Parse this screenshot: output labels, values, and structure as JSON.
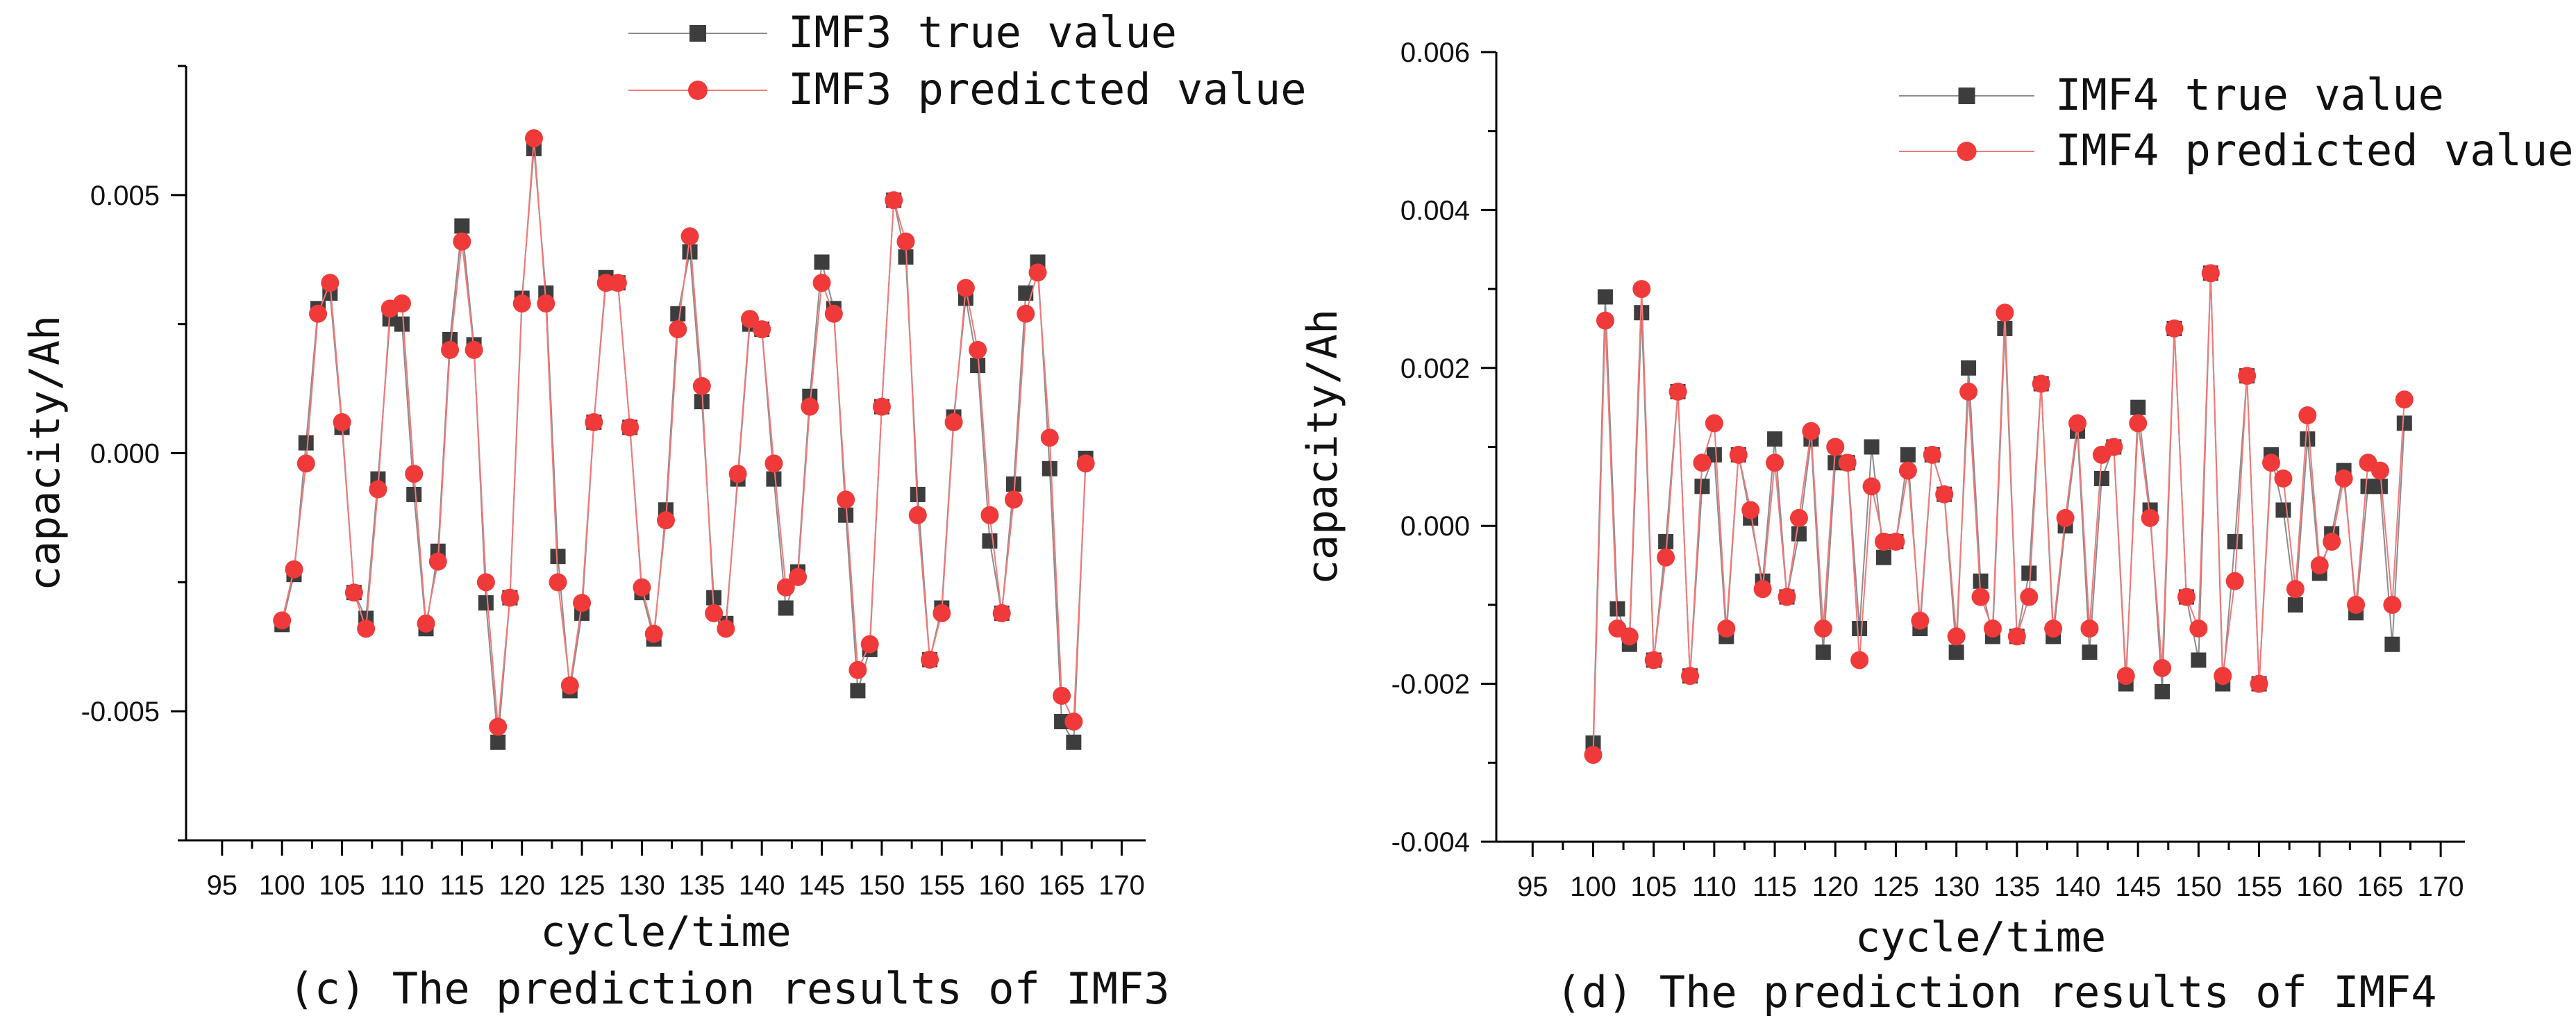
{
  "chart_data": [
    {
      "type": "line",
      "title": "",
      "caption": "(c) The prediction results of IMF3",
      "xlabel": "cycle/time",
      "ylabel": "capacity/Ah",
      "xlim": [
        92,
        172
      ],
      "ylim": [
        -0.0075,
        0.0075
      ],
      "xticks": [
        95,
        100,
        105,
        110,
        115,
        120,
        125,
        130,
        135,
        140,
        145,
        150,
        155,
        160,
        165,
        170
      ],
      "xtick_labels": [
        "95",
        "100",
        "105",
        "110",
        "115",
        "120",
        "125",
        "130",
        "135",
        "140",
        "145",
        "150",
        "155",
        "160",
        "165",
        "170"
      ],
      "yticks": [
        -0.005,
        0.0,
        0.005
      ],
      "ytick_labels": [
        "-0.005",
        "0.000",
        "0.005"
      ],
      "grid": false,
      "legend_position": "top-center",
      "x": [
        100,
        101,
        102,
        103,
        104,
        105,
        106,
        107,
        108,
        109,
        110,
        111,
        112,
        113,
        114,
        115,
        116,
        117,
        118,
        119,
        120,
        121,
        122,
        123,
        124,
        125,
        126,
        127,
        128,
        129,
        130,
        131,
        132,
        133,
        134,
        135,
        136,
        137,
        138,
        139,
        140,
        141,
        142,
        143,
        144,
        145,
        146,
        147,
        148,
        149,
        150,
        151,
        152,
        153,
        154,
        155,
        156,
        157,
        158,
        159,
        160,
        161,
        162,
        163,
        164,
        165,
        166,
        167
      ],
      "series": [
        {
          "name": "IMF3 true value",
          "marker": "square",
          "color": "#3d3d3d",
          "values": [
            -0.00332,
            -0.00235,
            0.0002,
            0.0028,
            0.0031,
            0.0005,
            -0.0027,
            -0.0032,
            -0.0005,
            0.0026,
            0.0025,
            -0.0008,
            -0.0034,
            -0.0019,
            0.0022,
            0.0044,
            0.0021,
            -0.0029,
            -0.0056,
            -0.0028,
            0.003,
            0.0059,
            0.0031,
            -0.002,
            -0.0046,
            -0.0031,
            0.0006,
            0.0034,
            0.0033,
            0.0005,
            -0.0027,
            -0.0036,
            -0.0011,
            0.0027,
            0.0039,
            0.001,
            -0.0028,
            -0.0033,
            -0.0005,
            0.0025,
            0.0024,
            -0.0005,
            -0.003,
            -0.0023,
            0.0011,
            0.0037,
            0.0028,
            -0.0012,
            -0.0046,
            -0.0038,
            0.0009,
            0.0049,
            0.0038,
            -0.0008,
            -0.004,
            -0.003,
            0.0007,
            0.003,
            0.0017,
            -0.0017,
            -0.0031,
            -0.0006,
            0.0031,
            0.0037,
            -0.0003,
            -0.0052,
            -0.0056,
            -0.0001
          ]
        },
        {
          "name": "IMF3 predicted value",
          "marker": "circle",
          "color": "#f03a3a",
          "values": [
            -0.00324,
            -0.00225,
            -0.0002,
            0.0027,
            0.0033,
            0.0006,
            -0.0027,
            -0.0034,
            -0.0007,
            0.0028,
            0.0029,
            -0.0004,
            -0.0033,
            -0.0021,
            0.002,
            0.0041,
            0.002,
            -0.0025,
            -0.0053,
            -0.0028,
            0.0029,
            0.0061,
            0.0029,
            -0.0025,
            -0.0045,
            -0.0029,
            0.0006,
            0.0033,
            0.0033,
            0.0005,
            -0.0026,
            -0.0035,
            -0.0013,
            0.0024,
            0.0042,
            0.0013,
            -0.0031,
            -0.0034,
            -0.0004,
            0.0026,
            0.0024,
            -0.0002,
            -0.0026,
            -0.0024,
            0.0009,
            0.0033,
            0.0027,
            -0.0009,
            -0.0042,
            -0.0037,
            0.0009,
            0.0049,
            0.0041,
            -0.0012,
            -0.004,
            -0.0031,
            0.0006,
            0.0032,
            0.002,
            -0.0012,
            -0.0031,
            -0.0009,
            0.0027,
            0.0035,
            0.0003,
            -0.0047,
            -0.0052,
            -0.0002
          ]
        }
      ]
    },
    {
      "type": "line",
      "title": "",
      "caption": "(d) The prediction results of IMF4",
      "xlabel": "cycle/time",
      "ylabel": "capacity/Ah",
      "xlim": [
        92,
        172
      ],
      "ylim": [
        -0.004,
        0.006
      ],
      "xticks": [
        95,
        100,
        105,
        110,
        115,
        120,
        125,
        130,
        135,
        140,
        145,
        150,
        155,
        160,
        165,
        170
      ],
      "xtick_labels": [
        "95",
        "100",
        "105",
        "110",
        "115",
        "120",
        "125",
        "130",
        "135",
        "140",
        "145",
        "150",
        "155",
        "160",
        "165",
        "170"
      ],
      "yticks": [
        -0.004,
        -0.002,
        0.0,
        0.002,
        0.004,
        0.006
      ],
      "ytick_labels": [
        "-0.004",
        "-0.002",
        "0.000",
        "0.002",
        "0.004",
        "0.006"
      ],
      "grid": false,
      "legend_position": "top-right",
      "x": [
        100,
        101,
        102,
        103,
        104,
        105,
        106,
        107,
        108,
        109,
        110,
        111,
        112,
        113,
        114,
        115,
        116,
        117,
        118,
        119,
        120,
        121,
        122,
        123,
        124,
        125,
        126,
        127,
        128,
        129,
        130,
        131,
        132,
        133,
        134,
        135,
        136,
        137,
        138,
        139,
        140,
        141,
        142,
        143,
        144,
        145,
        146,
        147,
        148,
        149,
        150,
        151,
        152,
        153,
        154,
        155,
        156,
        157,
        158,
        159,
        160,
        161,
        162,
        163,
        164,
        165,
        166,
        167
      ],
      "series": [
        {
          "name": "IMF4 true value",
          "marker": "square",
          "color": "#3d3d3d",
          "values": [
            -0.00275,
            0.0029,
            -0.00105,
            -0.0015,
            0.0027,
            -0.0017,
            -0.0002,
            0.0017,
            -0.0019,
            0.0005,
            0.0009,
            -0.0014,
            0.0009,
            0.0001,
            -0.0007,
            0.0011,
            -0.0009,
            -0.0001,
            0.0011,
            -0.0016,
            0.0008,
            0.0008,
            -0.0013,
            0.001,
            -0.0004,
            -0.0002,
            0.0009,
            -0.0013,
            0.0009,
            0.0004,
            -0.0016,
            0.002,
            -0.0007,
            -0.0014,
            0.0025,
            -0.0014,
            -0.0006,
            0.0018,
            -0.0014,
            0.0,
            0.0012,
            -0.0016,
            0.0006,
            0.001,
            -0.002,
            0.0015,
            0.0002,
            -0.0021,
            0.0025,
            -0.0009,
            -0.0017,
            0.0032,
            -0.002,
            -0.0002,
            0.0019,
            -0.002,
            0.0009,
            0.0002,
            -0.001,
            0.0011,
            -0.0006,
            -0.0001,
            0.0007,
            -0.0011,
            0.0005,
            0.0005,
            -0.0015,
            0.0013
          ]
        },
        {
          "name": "IMF4 predicted value",
          "marker": "circle",
          "color": "#f03a3a",
          "values": [
            -0.0029,
            0.0026,
            -0.0013,
            -0.0014,
            0.003,
            -0.0017,
            -0.0004,
            0.0017,
            -0.0019,
            0.0008,
            0.0013,
            -0.0013,
            0.0009,
            0.0002,
            -0.0008,
            0.0008,
            -0.0009,
            0.0001,
            0.0012,
            -0.0013,
            0.001,
            0.0008,
            -0.0017,
            0.0005,
            -0.0002,
            -0.0002,
            0.0007,
            -0.0012,
            0.0009,
            0.0004,
            -0.0014,
            0.0017,
            -0.0009,
            -0.0013,
            0.0027,
            -0.0014,
            -0.0009,
            0.0018,
            -0.0013,
            0.0001,
            0.0013,
            -0.0013,
            0.0009,
            0.001,
            -0.0019,
            0.0013,
            0.0001,
            -0.0018,
            0.0025,
            -0.0009,
            -0.0013,
            0.0032,
            -0.0019,
            -0.0007,
            0.0019,
            -0.002,
            0.0008,
            0.0006,
            -0.0008,
            0.0014,
            -0.0005,
            -0.0002,
            0.0006,
            -0.001,
            0.0008,
            0.0007,
            -0.001,
            0.0016
          ]
        }
      ]
    }
  ]
}
